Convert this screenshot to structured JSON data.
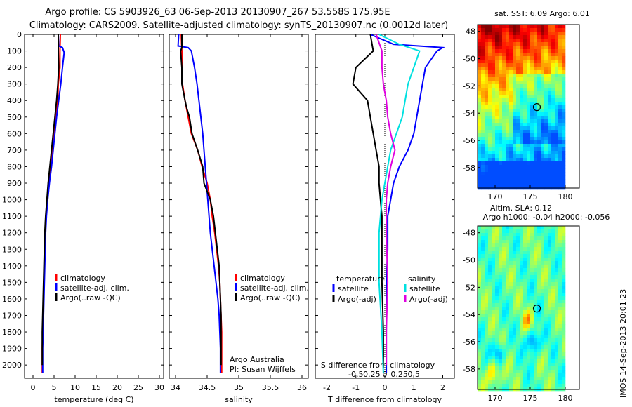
{
  "figure": {
    "title_line1": "Argo profile: CS 5903926_63 06-Sep-2013 20130907_267 53.558S 175.95E",
    "title_line2": "Climatology: CARS2009. Satellite-adjusted climatology: synTS_20130907.nc (0.0012d later)",
    "imos_stamp": "IMOS 14-Sep-2013 20:01:23",
    "argo_info_line1": "Argo Australia",
    "argo_info_line2": "PI: Susan Wijffels"
  },
  "colors": {
    "climatology": "#ff0000",
    "satellite": "#0000ff",
    "argo": "#000000",
    "salinity_satellite": "#00e0e0",
    "salinity_argo": "#e000e0"
  },
  "chart_data": [
    {
      "type": "line",
      "id": "temperature",
      "xlabel": "temperature (deg C)",
      "ylabel": "",
      "xlim": [
        -2,
        31
      ],
      "ylim": [
        2080,
        0
      ],
      "xticks": [
        0,
        5,
        10,
        15,
        20,
        25,
        30
      ],
      "yticks": [
        0,
        100,
        200,
        300,
        400,
        500,
        600,
        700,
        800,
        900,
        1000,
        1100,
        1200,
        1300,
        1400,
        1500,
        1600,
        1700,
        1800,
        1900,
        2000
      ],
      "legend": [
        "climatology",
        "satellite-adj. clim.",
        "Argo(..raw -QC)"
      ],
      "series": [
        {
          "name": "climatology",
          "color": "#ff0000",
          "points": [
            [
              6.5,
              0
            ],
            [
              6.4,
              100
            ],
            [
              6.4,
              200
            ],
            [
              6.0,
              300
            ],
            [
              5.9,
              400
            ],
            [
              5.5,
              500
            ],
            [
              4.9,
              600
            ],
            [
              4.5,
              700
            ],
            [
              4.1,
              800
            ],
            [
              3.7,
              900
            ],
            [
              3.4,
              1000
            ],
            [
              3.1,
              1100
            ],
            [
              2.9,
              1200
            ],
            [
              2.8,
              1300
            ],
            [
              2.7,
              1400
            ],
            [
              2.6,
              1500
            ],
            [
              2.5,
              1600
            ],
            [
              2.4,
              1700
            ],
            [
              2.3,
              1800
            ],
            [
              2.2,
              1900
            ],
            [
              2.2,
              2050
            ]
          ]
        },
        {
          "name": "satellite-adj. clim.",
          "color": "#0000ff",
          "points": [
            [
              6.0,
              0
            ],
            [
              6.1,
              70
            ],
            [
              7.0,
              80
            ],
            [
              7.4,
              110
            ],
            [
              7.0,
              200
            ],
            [
              6.6,
              300
            ],
            [
              6.1,
              400
            ],
            [
              5.6,
              500
            ],
            [
              5.2,
              600
            ],
            [
              4.8,
              700
            ],
            [
              4.4,
              800
            ],
            [
              3.9,
              900
            ],
            [
              3.5,
              1000
            ],
            [
              3.2,
              1100
            ],
            [
              3.0,
              1200
            ],
            [
              2.9,
              1300
            ],
            [
              2.8,
              1400
            ],
            [
              2.7,
              1500
            ],
            [
              2.6,
              1600
            ],
            [
              2.5,
              1700
            ],
            [
              2.4,
              1800
            ],
            [
              2.3,
              1900
            ],
            [
              2.3,
              2050
            ]
          ]
        },
        {
          "name": "Argo(..raw -QC)",
          "color": "#000000",
          "points": [
            [
              6.0,
              0
            ],
            [
              6.0,
              100
            ],
            [
              6.1,
              200
            ],
            [
              5.9,
              300
            ],
            [
              5.6,
              400
            ],
            [
              5.4,
              450
            ],
            [
              5.2,
              500
            ],
            [
              4.8,
              600
            ],
            [
              4.4,
              700
            ],
            [
              4.0,
              800
            ],
            [
              3.6,
              900
            ],
            [
              3.3,
              1000
            ],
            [
              3.0,
              1100
            ],
            [
              2.8,
              1200
            ],
            [
              2.7,
              1300
            ],
            [
              2.6,
              1400
            ],
            [
              2.5,
              1500
            ],
            [
              2.4,
              1600
            ],
            [
              2.3,
              1700
            ],
            [
              2.2,
              1800
            ],
            [
              2.2,
              1900
            ],
            [
              2.2,
              2000
            ]
          ]
        }
      ]
    },
    {
      "type": "line",
      "id": "salinity",
      "xlabel": "salinity",
      "ylabel": "",
      "xlim": [
        33.9,
        36.1
      ],
      "ylim": [
        2080,
        0
      ],
      "xticks": [
        34,
        34.5,
        35,
        35.5,
        36
      ],
      "xtick_labels": [
        "34",
        "34.5",
        "35",
        "35.5",
        "36"
      ],
      "legend": [
        "climatology",
        "satellite-adj. clim.",
        "Argo(..raw -QC)"
      ],
      "series": [
        {
          "name": "climatology",
          "color": "#ff0000",
          "points": [
            [
              34.09,
              0
            ],
            [
              34.1,
              100
            ],
            [
              34.1,
              200
            ],
            [
              34.11,
              300
            ],
            [
              34.15,
              400
            ],
            [
              34.2,
              500
            ],
            [
              34.25,
              600
            ],
            [
              34.35,
              700
            ],
            [
              34.42,
              800
            ],
            [
              34.5,
              900
            ],
            [
              34.55,
              1000
            ],
            [
              34.58,
              1100
            ],
            [
              34.62,
              1200
            ],
            [
              34.65,
              1300
            ],
            [
              34.68,
              1400
            ],
            [
              34.7,
              1500
            ],
            [
              34.71,
              1600
            ],
            [
              34.72,
              1700
            ],
            [
              34.73,
              1800
            ],
            [
              34.73,
              1900
            ],
            [
              34.73,
              2050
            ]
          ]
        },
        {
          "name": "satellite-adj. clim.",
          "color": "#0000ff",
          "points": [
            [
              34.05,
              0
            ],
            [
              34.04,
              70
            ],
            [
              34.2,
              80
            ],
            [
              34.25,
              100
            ],
            [
              34.3,
              200
            ],
            [
              34.34,
              300
            ],
            [
              34.37,
              400
            ],
            [
              34.4,
              500
            ],
            [
              34.43,
              600
            ],
            [
              34.45,
              700
            ],
            [
              34.47,
              800
            ],
            [
              34.49,
              900
            ],
            [
              34.51,
              1000
            ],
            [
              34.53,
              1100
            ],
            [
              34.55,
              1200
            ],
            [
              34.58,
              1300
            ],
            [
              34.61,
              1400
            ],
            [
              34.64,
              1500
            ],
            [
              34.67,
              1600
            ],
            [
              34.69,
              1700
            ],
            [
              34.7,
              1800
            ],
            [
              34.71,
              1900
            ],
            [
              34.71,
              2050
            ]
          ]
        },
        {
          "name": "Argo(..raw -QC)",
          "color": "#000000",
          "points": [
            [
              34.1,
              0
            ],
            [
              34.1,
              80
            ],
            [
              34.08,
              100
            ],
            [
              34.1,
              200
            ],
            [
              34.1,
              300
            ],
            [
              34.15,
              400
            ],
            [
              34.18,
              450
            ],
            [
              34.22,
              500
            ],
            [
              34.26,
              600
            ],
            [
              34.35,
              700
            ],
            [
              34.43,
              800
            ],
            [
              34.45,
              900
            ],
            [
              34.5,
              950
            ],
            [
              34.55,
              1000
            ],
            [
              34.6,
              1100
            ],
            [
              34.63,
              1200
            ],
            [
              34.66,
              1300
            ],
            [
              34.69,
              1400
            ],
            [
              34.7,
              1500
            ],
            [
              34.71,
              1600
            ],
            [
              34.72,
              1700
            ],
            [
              34.72,
              1800
            ],
            [
              34.72,
              1900
            ],
            [
              34.72,
              2000
            ]
          ]
        }
      ]
    },
    {
      "type": "line",
      "id": "differences",
      "xlabel": "T difference from climatology",
      "xlabel_top": "S difference from climatology",
      "xlim": [
        -2.4,
        2.4
      ],
      "ylim": [
        2080,
        0
      ],
      "xticks": [
        -2,
        -1,
        0,
        1,
        2
      ],
      "xtick_labels": [
        "-2",
        "-1",
        "0",
        "1",
        "2"
      ],
      "s_xticks": [
        -1,
        -0.5,
        0,
        0.5,
        1
      ],
      "s_xtick_labels": [
        "-0.5",
        "-0.25",
        "0",
        "0.25",
        "0.5"
      ],
      "legend_temperature_title": "temperature",
      "legend_salinity_title": "salinity",
      "legend": [
        "satellite",
        "Argo(-adj)",
        "satellite",
        "Argo(-adj)"
      ],
      "series": [
        {
          "name": "satellite",
          "group": "temperature",
          "color": "#0000ff",
          "points": [
            [
              -0.5,
              0
            ],
            [
              0.3,
              60
            ],
            [
              2.0,
              80
            ],
            [
              1.8,
              100
            ],
            [
              1.4,
              200
            ],
            [
              1.3,
              300
            ],
            [
              1.2,
              400
            ],
            [
              1.1,
              500
            ],
            [
              1.0,
              600
            ],
            [
              0.8,
              700
            ],
            [
              0.5,
              800
            ],
            [
              0.3,
              900
            ],
            [
              0.2,
              1000
            ],
            [
              0.1,
              1100
            ],
            [
              0.1,
              1300
            ],
            [
              0.05,
              1500
            ],
            [
              0.05,
              1800
            ],
            [
              0.05,
              2050
            ]
          ]
        },
        {
          "name": "Argo(-adj)",
          "group": "temperature",
          "color": "#000000",
          "points": [
            [
              -0.5,
              0
            ],
            [
              -0.4,
              100
            ],
            [
              -1.0,
              200
            ],
            [
              -1.1,
              300
            ],
            [
              -0.6,
              400
            ],
            [
              -0.5,
              500
            ],
            [
              -0.4,
              600
            ],
            [
              -0.3,
              700
            ],
            [
              -0.2,
              800
            ],
            [
              -0.2,
              900
            ],
            [
              -0.15,
              1000
            ],
            [
              -0.1,
              1100
            ],
            [
              -0.1,
              1300
            ],
            [
              -0.1,
              1500
            ],
            [
              -0.05,
              1800
            ],
            [
              -0.05,
              2000
            ]
          ]
        },
        {
          "name": "satellite",
          "group": "salinity",
          "color": "#00e0e0",
          "points": [
            [
              -0.2,
              0
            ],
            [
              0.5,
              60
            ],
            [
              1.2,
              100
            ],
            [
              1.0,
              200
            ],
            [
              0.8,
              300
            ],
            [
              0.7,
              400
            ],
            [
              0.6,
              500
            ],
            [
              0.4,
              600
            ],
            [
              0.2,
              700
            ],
            [
              0.1,
              800
            ],
            [
              0.0,
              900
            ],
            [
              -0.1,
              1000
            ],
            [
              -0.2,
              1200
            ],
            [
              -0.2,
              1500
            ],
            [
              -0.1,
              1800
            ],
            [
              -0.05,
              2050
            ]
          ]
        },
        {
          "name": "Argo(-adj)",
          "group": "salinity",
          "color": "#e000e0",
          "points": [
            [
              -0.3,
              0
            ],
            [
              -0.1,
              100
            ],
            [
              -0.1,
              200
            ],
            [
              -0.05,
              300
            ],
            [
              0.05,
              400
            ],
            [
              0.1,
              500
            ],
            [
              0.2,
              600
            ],
            [
              0.35,
              700
            ],
            [
              0.2,
              800
            ],
            [
              0.1,
              900
            ],
            [
              0.05,
              1000
            ],
            [
              0.05,
              1200
            ],
            [
              0.1,
              1500
            ],
            [
              0.05,
              1800
            ],
            [
              0.05,
              2000
            ]
          ]
        }
      ]
    },
    {
      "type": "heatmap",
      "id": "sst_map",
      "title": "sat. SST: 6.09 Argo: 6.01",
      "xlim": [
        167.5,
        182
      ],
      "ylim": [
        -59.5,
        -47.5
      ],
      "xticks": [
        170,
        175,
        180
      ],
      "yticks": [
        -48,
        -50,
        -52,
        -54,
        -56,
        -58
      ],
      "argo_position": [
        175.95,
        -53.558
      ]
    },
    {
      "type": "heatmap",
      "id": "sla_map",
      "title_line1": "Altim. SLA: 0.12",
      "title_line2": "Argo h1000: -0.04 h2000: -0.056",
      "xlim": [
        167.5,
        182
      ],
      "ylim": [
        -59.5,
        -47.5
      ],
      "xticks": [
        170,
        175,
        180
      ],
      "yticks": [
        -48,
        -50,
        -52,
        -54,
        -56,
        -58
      ],
      "argo_position": [
        175.95,
        -53.558
      ]
    }
  ]
}
